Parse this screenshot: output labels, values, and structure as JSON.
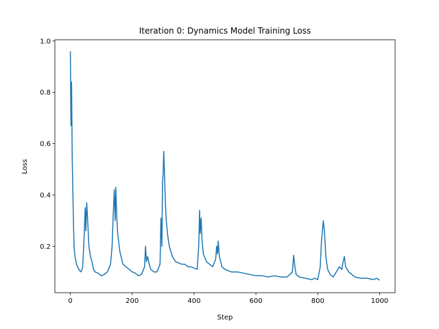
{
  "chart_data": {
    "type": "line",
    "title": "Iteration 0: Dynamics Model Training Loss",
    "x_label": "Step",
    "y_label": "Loss",
    "x": [
      0,
      2,
      4,
      6,
      8,
      10,
      12,
      15,
      20,
      25,
      30,
      35,
      40,
      45,
      48,
      50,
      53,
      56,
      60,
      65,
      70,
      75,
      80,
      90,
      100,
      110,
      120,
      130,
      135,
      138,
      142,
      145,
      147,
      150,
      153,
      160,
      170,
      180,
      190,
      200,
      210,
      220,
      230,
      240,
      243,
      246,
      250,
      255,
      260,
      270,
      280,
      290,
      293,
      296,
      298,
      300,
      302,
      304,
      307,
      310,
      315,
      320,
      330,
      340,
      350,
      360,
      370,
      380,
      390,
      400,
      410,
      415,
      418,
      420,
      423,
      426,
      430,
      440,
      450,
      460,
      470,
      473,
      476,
      478,
      482,
      490,
      500,
      520,
      540,
      560,
      580,
      600,
      620,
      640,
      660,
      680,
      700,
      710,
      718,
      722,
      726,
      730,
      740,
      760,
      780,
      790,
      800,
      808,
      812,
      818,
      822,
      826,
      832,
      840,
      850,
      860,
      870,
      878,
      882,
      886,
      890,
      900,
      920,
      940,
      960,
      980,
      990,
      1000
    ],
    "series": [
      {
        "name": "loss",
        "color": "#1f77b4",
        "values": [
          0.96,
          0.67,
          0.84,
          0.55,
          0.42,
          0.3,
          0.2,
          0.16,
          0.13,
          0.115,
          0.105,
          0.1,
          0.12,
          0.25,
          0.35,
          0.26,
          0.37,
          0.3,
          0.2,
          0.16,
          0.14,
          0.11,
          0.1,
          0.095,
          0.085,
          0.09,
          0.1,
          0.13,
          0.2,
          0.3,
          0.42,
          0.3,
          0.43,
          0.32,
          0.25,
          0.18,
          0.13,
          0.12,
          0.11,
          0.1,
          0.095,
          0.085,
          0.09,
          0.12,
          0.2,
          0.14,
          0.16,
          0.13,
          0.11,
          0.1,
          0.1,
          0.13,
          0.31,
          0.2,
          0.45,
          0.48,
          0.57,
          0.5,
          0.38,
          0.3,
          0.24,
          0.2,
          0.16,
          0.14,
          0.135,
          0.13,
          0.13,
          0.12,
          0.12,
          0.115,
          0.11,
          0.2,
          0.34,
          0.25,
          0.31,
          0.22,
          0.17,
          0.14,
          0.13,
          0.12,
          0.15,
          0.2,
          0.17,
          0.22,
          0.16,
          0.12,
          0.11,
          0.1,
          0.1,
          0.095,
          0.09,
          0.085,
          0.085,
          0.08,
          0.085,
          0.08,
          0.08,
          0.09,
          0.1,
          0.165,
          0.12,
          0.09,
          0.08,
          0.075,
          0.07,
          0.075,
          0.07,
          0.12,
          0.22,
          0.3,
          0.25,
          0.16,
          0.11,
          0.09,
          0.08,
          0.1,
          0.12,
          0.11,
          0.14,
          0.16,
          0.12,
          0.1,
          0.08,
          0.075,
          0.075,
          0.07,
          0.075,
          0.068
        ]
      }
    ],
    "xlim": [
      -50,
      1050
    ],
    "ylim": [
      0.019,
      1.005
    ],
    "xticks": [
      0,
      200,
      400,
      600,
      800,
      1000
    ],
    "yticks": [
      0.2,
      0.4,
      0.6,
      0.8,
      {
        "value": 1,
        "label": "1.0"
      }
    ]
  }
}
